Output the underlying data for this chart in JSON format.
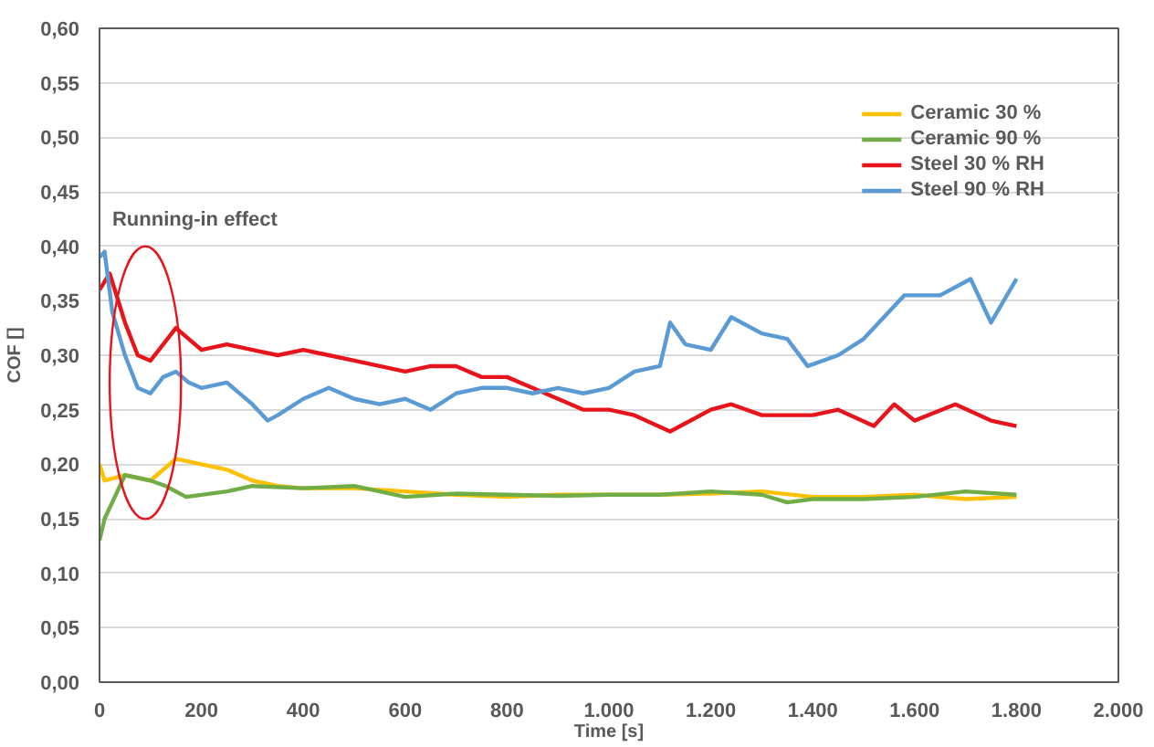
{
  "chart_data": {
    "type": "line",
    "xlabel": "Time [s]",
    "ylabel": "COF []",
    "annotations": [
      "Running-in effect"
    ],
    "xlim": [
      0,
      2000
    ],
    "ylim": [
      0,
      0.6
    ],
    "xticks": [
      0,
      200,
      400,
      600,
      800,
      {
        "value": 1000,
        "label": "1.000"
      },
      {
        "value": 1200,
        "label": "1.200"
      },
      {
        "value": 1400,
        "label": "1.400"
      },
      {
        "value": 1600,
        "label": "1.600"
      },
      {
        "value": 1800,
        "label": "1.800"
      },
      {
        "value": 2000,
        "label": "2.000"
      }
    ],
    "yticks": [
      {
        "value": 0,
        "label": "0,00"
      },
      {
        "value": 0.05,
        "label": "0,05"
      },
      {
        "value": 0.1,
        "label": "0,10"
      },
      {
        "value": 0.15,
        "label": "0,15"
      },
      {
        "value": 0.2,
        "label": "0,20"
      },
      {
        "value": 0.25,
        "label": "0,25"
      },
      {
        "value": 0.3,
        "label": "0,30"
      },
      {
        "value": 0.35,
        "label": "0,35"
      },
      {
        "value": 0.4,
        "label": "0,40"
      },
      {
        "value": 0.45,
        "label": "0,45"
      },
      {
        "value": 0.5,
        "label": "0,50"
      },
      {
        "value": 0.55,
        "label": "0,55"
      },
      {
        "value": 0.6,
        "label": "0,60"
      }
    ],
    "grid": "y",
    "legend": "top right",
    "marker": "none",
    "line_style": "solid",
    "series": [
      {
        "name": "Ceramic 30 %",
        "color": "#ffc000",
        "x": [
          0,
          10,
          50,
          100,
          150,
          200,
          250,
          300,
          350,
          400,
          500,
          600,
          700,
          800,
          900,
          1000,
          1100,
          1200,
          1300,
          1400,
          1500,
          1600,
          1700,
          1800
        ],
        "values": [
          0.2,
          0.185,
          0.19,
          0.185,
          0.205,
          0.2,
          0.195,
          0.185,
          0.18,
          0.178,
          0.178,
          0.175,
          0.172,
          0.17,
          0.172,
          0.172,
          0.172,
          0.173,
          0.175,
          0.17,
          0.17,
          0.172,
          0.168,
          0.17
        ]
      },
      {
        "name": "Ceramic 90 %",
        "color": "#70ad47",
        "x": [
          0,
          10,
          30,
          50,
          100,
          130,
          170,
          250,
          300,
          400,
          500,
          600,
          700,
          800,
          900,
          1000,
          1100,
          1200,
          1300,
          1350,
          1400,
          1500,
          1600,
          1700,
          1800
        ],
        "values": [
          0.13,
          0.15,
          0.17,
          0.19,
          0.185,
          0.18,
          0.17,
          0.175,
          0.18,
          0.178,
          0.18,
          0.17,
          0.173,
          0.172,
          0.171,
          0.172,
          0.172,
          0.175,
          0.172,
          0.165,
          0.168,
          0.168,
          0.17,
          0.175,
          0.172
        ]
      },
      {
        "name": "Steel 30 % RH",
        "color": "#e8141c",
        "x": [
          0,
          20,
          50,
          75,
          100,
          125,
          150,
          175,
          200,
          250,
          300,
          350,
          400,
          450,
          500,
          550,
          600,
          650,
          700,
          750,
          800,
          850,
          900,
          950,
          1000,
          1050,
          1120,
          1200,
          1240,
          1300,
          1400,
          1450,
          1520,
          1560,
          1600,
          1680,
          1750,
          1800
        ],
        "values": [
          0.36,
          0.375,
          0.33,
          0.3,
          0.295,
          0.31,
          0.325,
          0.315,
          0.305,
          0.31,
          0.305,
          0.3,
          0.305,
          0.3,
          0.295,
          0.29,
          0.285,
          0.29,
          0.29,
          0.28,
          0.28,
          0.27,
          0.26,
          0.25,
          0.25,
          0.245,
          0.23,
          0.25,
          0.255,
          0.245,
          0.245,
          0.25,
          0.235,
          0.255,
          0.24,
          0.255,
          0.24,
          0.235
        ]
      },
      {
        "name": "Steel 90 % RH",
        "color": "#5b9bd5",
        "x": [
          0,
          10,
          25,
          50,
          75,
          100,
          125,
          150,
          175,
          200,
          250,
          300,
          330,
          350,
          400,
          450,
          500,
          550,
          600,
          650,
          700,
          750,
          800,
          850,
          900,
          950,
          1000,
          1050,
          1100,
          1120,
          1150,
          1200,
          1240,
          1300,
          1350,
          1390,
          1450,
          1500,
          1580,
          1650,
          1710,
          1750,
          1800
        ],
        "values": [
          0.39,
          0.395,
          0.34,
          0.3,
          0.27,
          0.265,
          0.28,
          0.285,
          0.275,
          0.27,
          0.275,
          0.255,
          0.24,
          0.245,
          0.26,
          0.27,
          0.26,
          0.255,
          0.26,
          0.25,
          0.265,
          0.27,
          0.27,
          0.265,
          0.27,
          0.265,
          0.27,
          0.285,
          0.29,
          0.33,
          0.31,
          0.305,
          0.335,
          0.32,
          0.315,
          0.29,
          0.3,
          0.315,
          0.355,
          0.355,
          0.37,
          0.33,
          0.37
        ]
      }
    ]
  }
}
